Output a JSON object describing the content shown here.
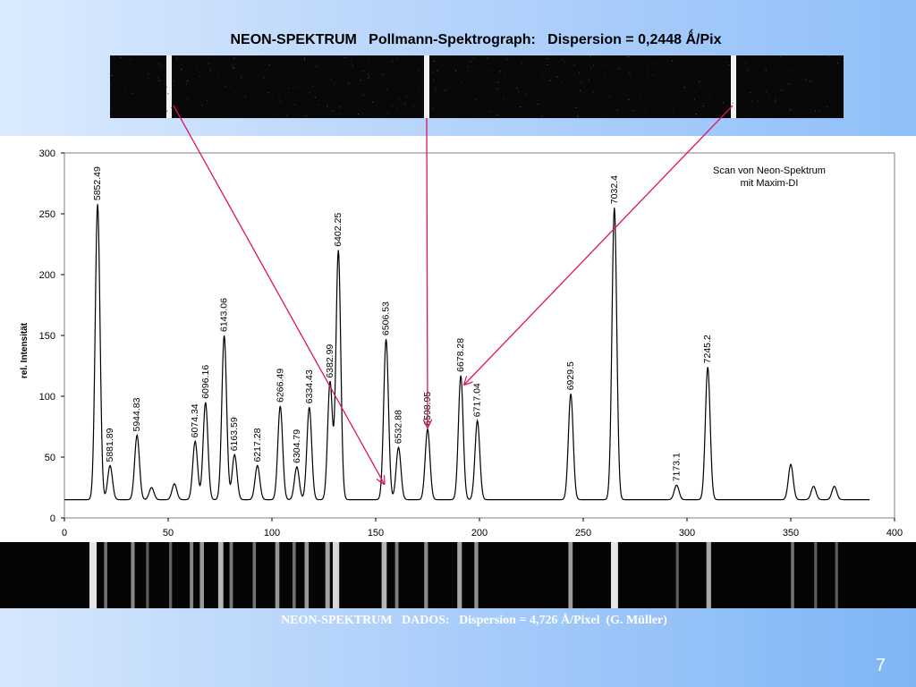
{
  "slide": {
    "title": "NEON-SPEKTRUM   Pollmann-Spektrograph:   Dispersion = 0,2448 Ǻ/Pix",
    "bottom_caption": "NEON-SPEKTRUM   DADOS:   Dispersion = 4,726 Å/Pixel  (G. Müller)",
    "page_number": "7",
    "arrow_color": "#e0115f",
    "plot_background": "#ffffff",
    "spectrum_background": "#080808"
  },
  "chart_data": {
    "type": "line",
    "annotation": "Scan von Neon-Spektrum\nmit Maxim-DI",
    "ylabel": "rel. Intensität",
    "xlabel": "",
    "xlim": [
      0,
      400
    ],
    "ylim": [
      0,
      300
    ],
    "xticks": [
      0,
      50,
      100,
      150,
      200,
      250,
      300,
      350,
      400
    ],
    "yticks": [
      0,
      50,
      100,
      150,
      200,
      250,
      300
    ],
    "baseline": 15,
    "line_color": "#000000",
    "peaks": [
      {
        "x": 16,
        "y": 258,
        "label": "5852.49"
      },
      {
        "x": 22,
        "y": 43,
        "label": "5881.89"
      },
      {
        "x": 35,
        "y": 68,
        "label": "5944.83"
      },
      {
        "x": 42,
        "y": 25,
        "label": ""
      },
      {
        "x": 53,
        "y": 28,
        "label": ""
      },
      {
        "x": 63,
        "y": 63,
        "label": "6074.34"
      },
      {
        "x": 68,
        "y": 95,
        "label": "6096.16"
      },
      {
        "x": 77,
        "y": 150,
        "label": "6143.06"
      },
      {
        "x": 82,
        "y": 52,
        "label": "6163.59"
      },
      {
        "x": 93,
        "y": 43,
        "label": "6217.28"
      },
      {
        "x": 104,
        "y": 92,
        "label": "6266.49"
      },
      {
        "x": 112,
        "y": 42,
        "label": "6304.79"
      },
      {
        "x": 118,
        "y": 91,
        "label": "6334.43"
      },
      {
        "x": 128,
        "y": 112,
        "label": "6382.99"
      },
      {
        "x": 132,
        "y": 220,
        "label": "6402.25"
      },
      {
        "x": 155,
        "y": 147,
        "label": "6506.53"
      },
      {
        "x": 161,
        "y": 58,
        "label": "6532.88"
      },
      {
        "x": 175,
        "y": 73,
        "label": "6598.95"
      },
      {
        "x": 191,
        "y": 117,
        "label": "6678.28"
      },
      {
        "x": 199,
        "y": 80,
        "label": "6717.04"
      },
      {
        "x": 244,
        "y": 102,
        "label": "6929.5"
      },
      {
        "x": 265,
        "y": 255,
        "label": "7032.4"
      },
      {
        "x": 295,
        "y": 27,
        "label": "7173.1"
      },
      {
        "x": 310,
        "y": 124,
        "label": "7245.2"
      },
      {
        "x": 350,
        "y": 44,
        "label": ""
      },
      {
        "x": 361,
        "y": 26,
        "label": ""
      },
      {
        "x": 371,
        "y": 26,
        "label": ""
      }
    ],
    "highlighted_lines": [
      {
        "label": "6532.88",
        "x": 161
      },
      {
        "label": "6598.95",
        "x": 175
      },
      {
        "label": "6678.28",
        "x": 191
      }
    ],
    "top_spectrum_lines": [
      {
        "label": "6532.88"
      },
      {
        "label": "6598.95"
      },
      {
        "label": "6678.28"
      }
    ]
  }
}
